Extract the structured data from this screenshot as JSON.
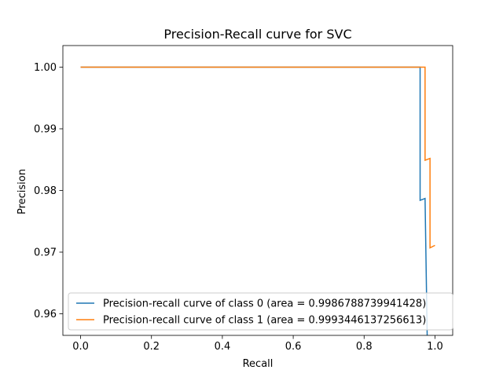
{
  "chart_data": {
    "type": "line",
    "title": "Precision-Recall curve for SVC",
    "xlabel": "Recall",
    "ylabel": "Precision",
    "xlim": [
      -0.05,
      1.05
    ],
    "ylim": [
      0.9565,
      1.0035
    ],
    "xticks": [
      0.0,
      0.2,
      0.4,
      0.6,
      0.8,
      1.0
    ],
    "xtick_labels": [
      "0.0",
      "0.2",
      "0.4",
      "0.6",
      "0.8",
      "1.0"
    ],
    "yticks": [
      0.96,
      0.97,
      0.98,
      0.99,
      1.0
    ],
    "ytick_labels": [
      "0.96",
      "0.97",
      "0.98",
      "0.99",
      "1.00"
    ],
    "grid": false,
    "legend_position": "lower-left",
    "series": [
      {
        "name": "Precision-recall curve of class 0 (area = 0.9986788739941428)",
        "color": "#1f77b4",
        "x": [
          0.0,
          0.958,
          0.958,
          0.972,
          0.972,
          0.978
        ],
        "y": [
          1.0,
          1.0,
          0.9784,
          0.9787,
          0.9787,
          0.9565
        ]
      },
      {
        "name": "Precision-recall curve of class 1 (area = 0.9993446137256613)",
        "color": "#ff7f0e",
        "x": [
          0.0,
          0.972,
          0.972,
          0.986,
          0.986,
          1.0
        ],
        "y": [
          1.0,
          1.0,
          0.9849,
          0.9852,
          0.9707,
          0.9711
        ]
      }
    ]
  }
}
